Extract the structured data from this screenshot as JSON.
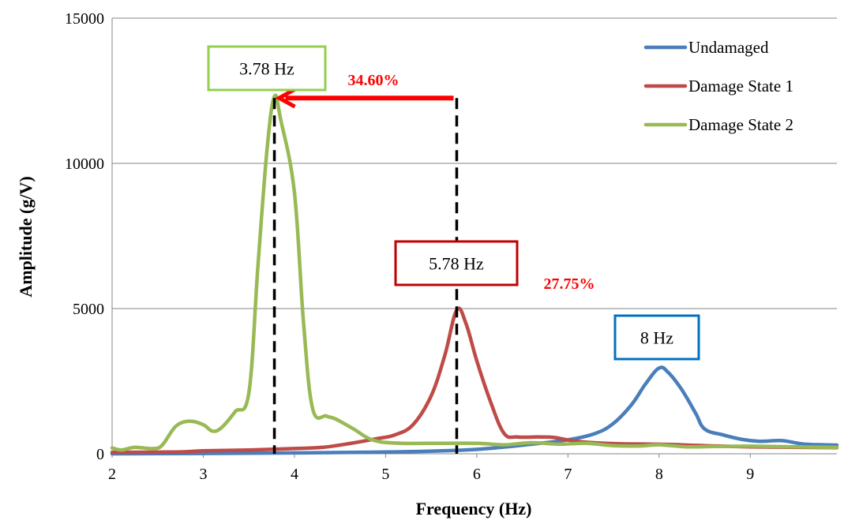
{
  "colors": {
    "undamaged": "#4A7EBB",
    "damage1": "#BE4B48",
    "damage2": "#98B954",
    "arrow": "#FF0000",
    "box_green": "#92D050",
    "box_red": "#C00000",
    "box_blue": "#0070C0",
    "grid": "#868686"
  },
  "chart_data": {
    "type": "line",
    "xlabel": "Frequency (Hz)",
    "ylabel": "Amplitude (g/V)",
    "xlim": [
      2,
      9.95
    ],
    "ylim": [
      0,
      15000
    ],
    "x_ticks": [
      "2",
      "3",
      "4",
      "5",
      "6",
      "7",
      "8",
      "9"
    ],
    "y_ticks": [
      "0",
      "5000",
      "10000",
      "15000"
    ],
    "grid": "horizontal",
    "legend_position": "top-right",
    "series": [
      {
        "name": "Undamaged",
        "color": "#4A7EBB",
        "points": [
          [
            2,
            0
          ],
          [
            3,
            10
          ],
          [
            4,
            30
          ],
          [
            5,
            60
          ],
          [
            5.8,
            120
          ],
          [
            6.2,
            200
          ],
          [
            6.6,
            330
          ],
          [
            7,
            480
          ],
          [
            7.3,
            700
          ],
          [
            7.5,
            1050
          ],
          [
            7.7,
            1700
          ],
          [
            7.85,
            2400
          ],
          [
            8,
            2950
          ],
          [
            8.1,
            2800
          ],
          [
            8.25,
            2200
          ],
          [
            8.4,
            1400
          ],
          [
            8.5,
            850
          ],
          [
            8.7,
            650
          ],
          [
            8.9,
            500
          ],
          [
            9.1,
            430
          ],
          [
            9.35,
            450
          ],
          [
            9.6,
            330
          ],
          [
            9.95,
            300
          ]
        ]
      },
      {
        "name": "Damage State 1",
        "color": "#BE4B48",
        "points": [
          [
            2,
            50
          ],
          [
            2.7,
            60
          ],
          [
            3,
            100
          ],
          [
            3.5,
            130
          ],
          [
            4,
            180
          ],
          [
            4.3,
            220
          ],
          [
            4.6,
            350
          ],
          [
            4.9,
            520
          ],
          [
            5.1,
            650
          ],
          [
            5.3,
            1000
          ],
          [
            5.5,
            2000
          ],
          [
            5.65,
            3400
          ],
          [
            5.78,
            4950
          ],
          [
            5.88,
            4500
          ],
          [
            6,
            3200
          ],
          [
            6.15,
            1800
          ],
          [
            6.3,
            700
          ],
          [
            6.45,
            580
          ],
          [
            6.7,
            580
          ],
          [
            6.85,
            560
          ],
          [
            7.1,
            430
          ],
          [
            7.5,
            350
          ],
          [
            8,
            330
          ],
          [
            8.5,
            280
          ],
          [
            9,
            240
          ],
          [
            9.95,
            210
          ]
        ]
      },
      {
        "name": "Damage State 2",
        "color": "#98B954",
        "points": [
          [
            2,
            200
          ],
          [
            2.1,
            130
          ],
          [
            2.25,
            220
          ],
          [
            2.45,
            180
          ],
          [
            2.55,
            300
          ],
          [
            2.7,
            950
          ],
          [
            2.85,
            1120
          ],
          [
            3,
            1000
          ],
          [
            3.1,
            780
          ],
          [
            3.2,
            900
          ],
          [
            3.35,
            1450
          ],
          [
            3.5,
            2100
          ],
          [
            3.6,
            6500
          ],
          [
            3.7,
            10500
          ],
          [
            3.78,
            12300
          ],
          [
            3.85,
            11500
          ],
          [
            4,
            9000
          ],
          [
            4.1,
            4500
          ],
          [
            4.2,
            1550
          ],
          [
            4.35,
            1300
          ],
          [
            4.45,
            1200
          ],
          [
            4.65,
            850
          ],
          [
            4.85,
            480
          ],
          [
            5.1,
            370
          ],
          [
            5.5,
            360
          ],
          [
            6,
            360
          ],
          [
            6.3,
            310
          ],
          [
            6.6,
            380
          ],
          [
            6.9,
            330
          ],
          [
            7.2,
            360
          ],
          [
            7.5,
            280
          ],
          [
            7.8,
            270
          ],
          [
            8,
            310
          ],
          [
            8.3,
            240
          ],
          [
            8.6,
            250
          ],
          [
            9,
            260
          ],
          [
            9.5,
            240
          ],
          [
            9.95,
            220
          ]
        ]
      }
    ],
    "annotations": {
      "box_damage2": "3.78 Hz",
      "box_damage1": "5.78 Hz",
      "box_undamaged": "8 Hz",
      "pct_1": "34.60%",
      "pct_2": "27.75%"
    }
  }
}
